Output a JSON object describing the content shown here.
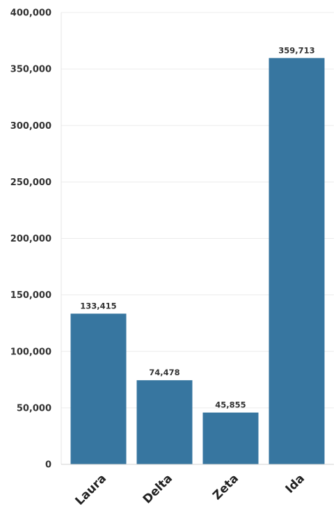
{
  "chart_data": {
    "type": "bar",
    "title": "",
    "xlabel": "",
    "ylabel": "",
    "categories": [
      "Laura",
      "Delta",
      "Zeta",
      "Ida"
    ],
    "values": [
      133415,
      74478,
      45855,
      359713
    ],
    "value_labels": [
      "133,415",
      "74,478",
      "45,855",
      "359,713"
    ],
    "ylim": [
      0,
      400000
    ],
    "yticks": [
      0,
      50000,
      100000,
      150000,
      200000,
      250000,
      300000,
      350000,
      400000
    ],
    "ytick_labels": [
      "0",
      "50,000",
      "100,000",
      "150,000",
      "200,000",
      "250,000",
      "300,000",
      "350,000",
      "400,000"
    ],
    "grid": true,
    "bar_color": "#3776a0"
  }
}
